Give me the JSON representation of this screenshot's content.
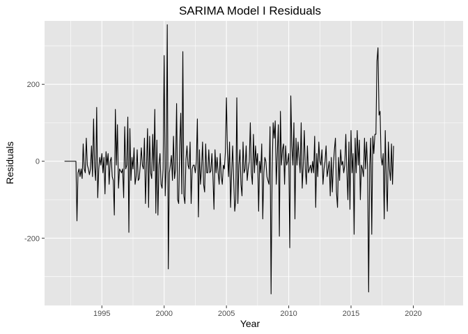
{
  "chart_data": {
    "type": "line",
    "title": "SARIMA Model I Residuals",
    "xlabel": "Year",
    "ylabel": "Residuals",
    "xlim": [
      1990.4,
      2024.0
    ],
    "ylim": [
      -375,
      365
    ],
    "x_ticks": [
      1995,
      2000,
      2005,
      2010,
      2015,
      2020
    ],
    "x_tick_labels": [
      "1995",
      "2000",
      "2005",
      "2010",
      "2015",
      "2020"
    ],
    "y_ticks": [
      -200,
      0,
      200
    ],
    "y_tick_labels": [
      "-200",
      "0",
      "200"
    ],
    "grid": true,
    "legend": "none",
    "colors": {
      "panel": "#e5e5e5",
      "grid": "#ffffff",
      "line": "#000000",
      "tick_text": "#4d4d4d"
    },
    "series": [
      {
        "x_start": 1992.0,
        "x_step": 0.08333,
        "values": [
          0,
          0,
          0,
          0,
          0,
          0,
          0,
          0,
          0,
          0,
          0,
          0,
          -155,
          -30,
          -20,
          -40,
          -20,
          -45,
          45,
          -20,
          -30,
          60,
          -10,
          -20,
          -35,
          -20,
          40,
          -40,
          110,
          -15,
          -50,
          140,
          -95,
          -20,
          10,
          -10,
          20,
          -30,
          10,
          -85,
          25,
          -10,
          20,
          -60,
          0,
          10,
          -40,
          -50,
          -140,
          135,
          -10,
          95,
          -70,
          -20,
          -25,
          -30,
          -20,
          -95,
          90,
          -20,
          -10,
          115,
          -185,
          85,
          -50,
          10,
          -20,
          35,
          -60,
          -40,
          30,
          -50,
          -45,
          -10,
          35,
          -10,
          -20,
          60,
          -110,
          -10,
          85,
          -120,
          65,
          -30,
          -45,
          70,
          -25,
          135,
          -135,
          55,
          -140,
          -10,
          20,
          -60,
          -70,
          -20,
          275,
          -90,
          -10,
          355,
          -280,
          -30,
          -10,
          15,
          -50,
          65,
          -45,
          -20,
          150,
          -100,
          -110,
          40,
          125,
          -85,
          285,
          -90,
          -110,
          5,
          40,
          -10,
          -20,
          50,
          -110,
          -20,
          -10,
          -10,
          -30,
          0,
          110,
          -145,
          30,
          -60,
          -20,
          50,
          -60,
          -80,
          45,
          -30,
          -30,
          30,
          -30,
          -25,
          20,
          -40,
          -125,
          30,
          -30,
          10,
          -30,
          -60,
          20,
          -40,
          -60,
          -10,
          -20,
          25,
          165,
          20,
          -40,
          50,
          -120,
          -30,
          40,
          -50,
          -130,
          -100,
          165,
          -110,
          -10,
          30,
          -60,
          -90,
          50,
          -30,
          -20,
          40,
          -50,
          -20,
          0,
          100,
          -30,
          -60,
          70,
          -30,
          40,
          -10,
          20,
          -130,
          0,
          -30,
          45,
          -150,
          -30,
          10,
          0,
          -40,
          -50,
          -60,
          90,
          -345,
          -30,
          100,
          60,
          105,
          -60,
          20,
          95,
          -195,
          130,
          -10,
          30,
          45,
          -60,
          40,
          -10,
          0,
          20,
          -225,
          170,
          40,
          -10,
          100,
          -150,
          60,
          -10,
          50,
          10,
          -30,
          100,
          -70,
          -10,
          80,
          -20,
          -60,
          40,
          -30,
          -20,
          -10,
          -30,
          0,
          -30,
          65,
          -120,
          20,
          -40,
          50,
          0,
          -10,
          30,
          -60,
          -20,
          0,
          40,
          -40,
          -20,
          0,
          -90,
          10,
          -80,
          -10,
          30,
          60,
          -80,
          -120,
          10,
          -50,
          30,
          -10,
          0,
          -30,
          -10,
          70,
          -25,
          -100,
          50,
          -125,
          80,
          -30,
          20,
          -190,
          60,
          -30,
          80,
          -10,
          55,
          -100,
          -10,
          -20,
          -40,
          60,
          -20,
          50,
          -20,
          -340,
          -10,
          60,
          -190,
          65,
          20,
          70,
          70,
          260,
          295,
          120,
          130,
          10,
          -10,
          20,
          -150,
          80,
          -50,
          -130,
          50,
          -20,
          -50,
          45,
          -60,
          40
        ]
      }
    ]
  }
}
